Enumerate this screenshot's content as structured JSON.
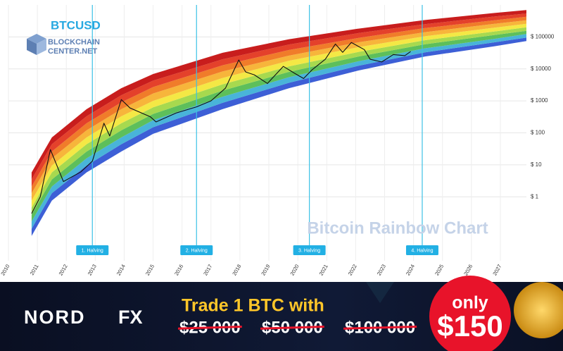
{
  "chart_data": {
    "type": "line",
    "log": true,
    "grid": true,
    "watermark": "Bitcoin Rainbow Chart",
    "xlim": [
      2010,
      2027.9
    ],
    "ylim": [
      0.01,
      1000000
    ],
    "xticks": [
      2010,
      2011,
      2012,
      2013,
      2014,
      2015,
      2016,
      2017,
      2018,
      2019,
      2020,
      2021,
      2022,
      2023,
      2024,
      2025,
      2026,
      2027
    ],
    "yticks": [
      {
        "value": 1,
        "label": "$ 1"
      },
      {
        "value": 10,
        "label": "$ 10"
      },
      {
        "value": 100,
        "label": "$ 100"
      },
      {
        "value": 1000,
        "label": "$ 1000"
      },
      {
        "value": 10000,
        "label": "$ 10000"
      },
      {
        "value": 100000,
        "label": "$ 100000"
      }
    ],
    "series": [
      {
        "name": "BTCUSD",
        "color": "#111111",
        "x": [
          2010.8,
          2011.1,
          2011.45,
          2011.9,
          2012.5,
          2012.9,
          2013.3,
          2013.5,
          2013.9,
          2014.2,
          2014.9,
          2015.1,
          2015.8,
          2016.5,
          2017.0,
          2017.5,
          2017.96,
          2018.2,
          2018.5,
          2018.95,
          2019.5,
          2019.9,
          2020.2,
          2020.5,
          2020.95,
          2021.3,
          2021.55,
          2021.85,
          2022.3,
          2022.5,
          2022.9,
          2023.3,
          2023.7,
          2023.9
        ],
        "values": [
          0.3,
          1,
          30,
          3,
          6,
          13,
          200,
          80,
          1100,
          600,
          320,
          220,
          420,
          650,
          1000,
          2500,
          19000,
          8000,
          6500,
          3500,
          12000,
          7200,
          5000,
          9500,
          20000,
          60000,
          33000,
          67000,
          40000,
          20000,
          16500,
          28000,
          26000,
          35000
        ]
      }
    ],
    "bands": {
      "x": [
        2010.8,
        2011.5,
        2012.7,
        2013.9,
        2015,
        2017.4,
        2019.7,
        2022.1,
        2024.4,
        2026.8,
        2027.9
      ],
      "colors": [
        "#3d5fd6",
        "#49b4d9",
        "#5dbf5b",
        "#a7d94f",
        "#f4e845",
        "#f7b53b",
        "#f07c2a",
        "#e4412b",
        "#c81d1d"
      ],
      "edges": [
        [
          0.06,
          0.76,
          5.8,
          26,
          93,
          550,
          2500,
          8900,
          24500,
          51000,
          74000
        ],
        [
          0.1,
          1.3,
          9.5,
          44,
          150,
          870,
          3700,
          12600,
          33000,
          68000,
          95000
        ],
        [
          0.17,
          2.1,
          16,
          72,
          250,
          1350,
          5500,
          17400,
          44000,
          87000,
          123000
        ],
        [
          0.28,
          3.5,
          26,
          120,
          390,
          2100,
          8100,
          24500,
          59000,
          115000,
          155000
        ],
        [
          0.46,
          5.8,
          44,
          200,
          630,
          3300,
          12000,
          34000,
          79000,
          148000,
          200000
        ],
        [
          0.76,
          9.5,
          72,
          330,
          1000,
          5200,
          18000,
          48000,
          105000,
          195000,
          257000
        ],
        [
          1.3,
          16,
          120,
          550,
          1700,
          8300,
          26000,
          68000,
          141000,
          257000,
          331000
        ],
        [
          2.1,
          26,
          200,
          900,
          2700,
          13000,
          39000,
          93000,
          190000,
          331000,
          427000
        ],
        [
          3.5,
          44,
          330,
          1500,
          4300,
          20000,
          58000,
          132000,
          251000,
          437000,
          537000
        ],
        [
          5.8,
          72,
          550,
          2500,
          6900,
          32000,
          85000,
          182000,
          339000,
          562000,
          692000
        ]
      ]
    },
    "halvings": [
      {
        "x": 2012.9,
        "label": "1. Halving"
      },
      {
        "x": 2016.5,
        "label": "2. Halving"
      },
      {
        "x": 2020.4,
        "label": "3. Halving"
      },
      {
        "x": 2024.3,
        "label": "4. Halving"
      }
    ]
  },
  "logo": {
    "lines": [
      "BLOCKCHAIN",
      "CENTER.NET"
    ]
  },
  "banner": {
    "brand": [
      "NORD",
      "FX"
    ],
    "headline": "Trade 1 BTC with",
    "old_prices": [
      "$25 000",
      "$50 000",
      "$100 000"
    ],
    "badge_top": "only",
    "badge_price": "$150"
  }
}
